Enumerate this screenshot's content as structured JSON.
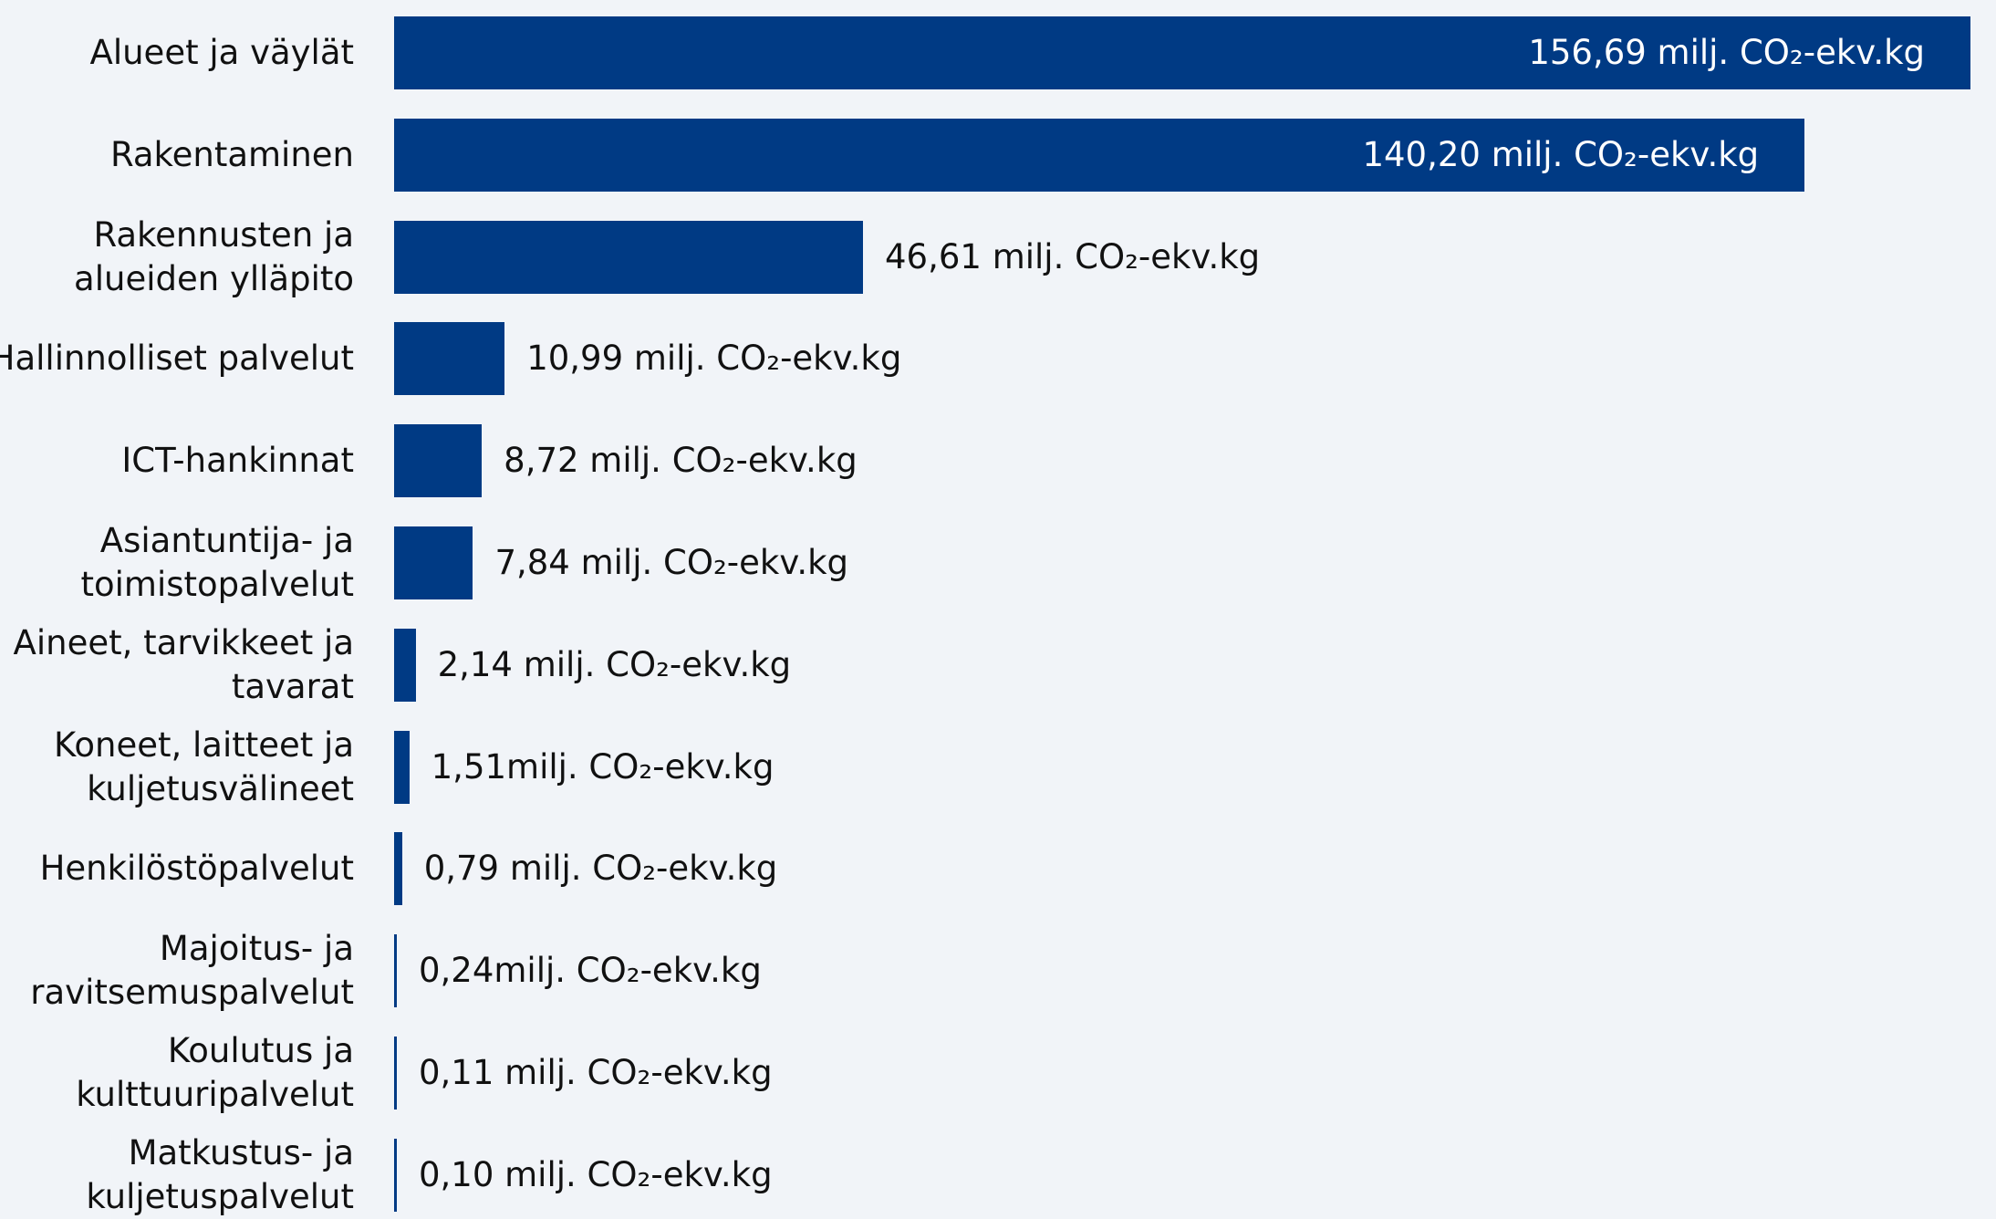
{
  "chart_data": {
    "type": "bar",
    "orientation": "horizontal",
    "categories": [
      "Alueet ja väylät",
      "Rakentaminen",
      "Rakennusten ja alueiden ylläpito",
      "Hallinnolliset palvelut",
      "ICT-hankinnat",
      "Asiantuntija- ja toimistopalvelut",
      "Aineet, tarvikkeet ja tavarat",
      "Koneet, laitteet ja kuljetusvälineet",
      "Henkilöstöpalvelut",
      "Majoitus- ja ravitsemuspalvelut",
      "Koulutus ja kulttuuripalvelut",
      "Matkustus- ja kuljetuspalvelut"
    ],
    "values": [
      156.69,
      140.2,
      46.61,
      10.99,
      8.72,
      7.84,
      2.14,
      1.51,
      0.79,
      0.24,
      0.11,
      0.1
    ],
    "value_labels": [
      "156,69 milj. CO₂-ekv.kg",
      "140,20 milj. CO₂-ekv.kg",
      "46,61 milj. CO₂-ekv.kg",
      "10,99 milj. CO₂-ekv.kg",
      "8,72 milj. CO₂-ekv.kg",
      "7,84 milj. CO₂-ekv.kg",
      "2,14 milj. CO₂-ekv.kg",
      "1,51milj. CO₂-ekv.kg",
      "0,79 milj. CO₂-ekv.kg",
      "0,24milj. CO₂-ekv.kg",
      "0,11 milj. CO₂-ekv.kg",
      "0,10 milj. CO₂-ekv.kg"
    ],
    "unit": "milj. CO₂-ekv.kg",
    "title": "",
    "xlabel": "",
    "ylabel": "",
    "xlim": [
      0,
      156.69
    ],
    "grid": false,
    "legend": "none",
    "bar_color": "#003a84",
    "background_color": "#f1f4f8"
  }
}
